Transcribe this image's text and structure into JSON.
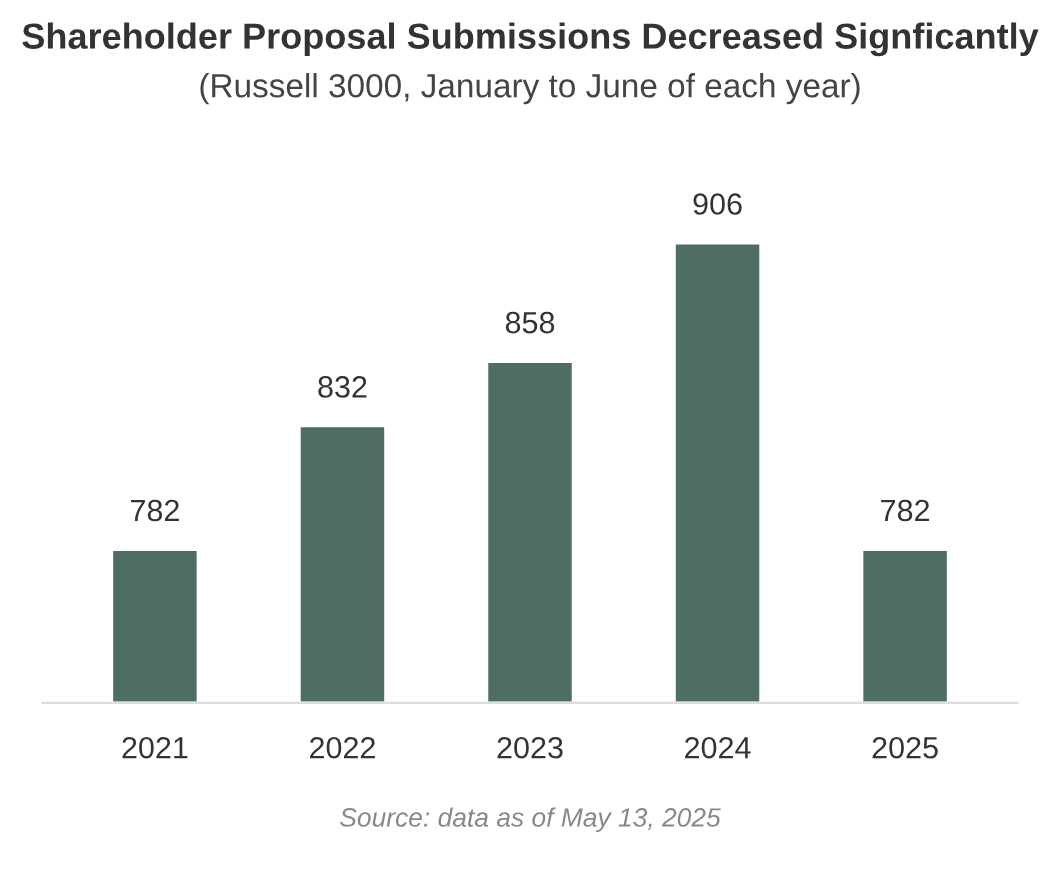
{
  "chart_data": {
    "type": "bar",
    "title": "Shareholder Proposal Submissions Decreased Signficantly",
    "subtitle": "(Russell 3000, January to June of each year)",
    "categories": [
      "2021",
      "2022",
      "2023",
      "2024",
      "2025"
    ],
    "values": [
      782,
      832,
      858,
      906,
      782
    ],
    "color": "#4e6e64",
    "ylim": [
      720,
      906
    ],
    "data_labels": true,
    "grid": false,
    "legend": false,
    "annotations": [
      "Source: data as of May 13, 2025"
    ]
  }
}
